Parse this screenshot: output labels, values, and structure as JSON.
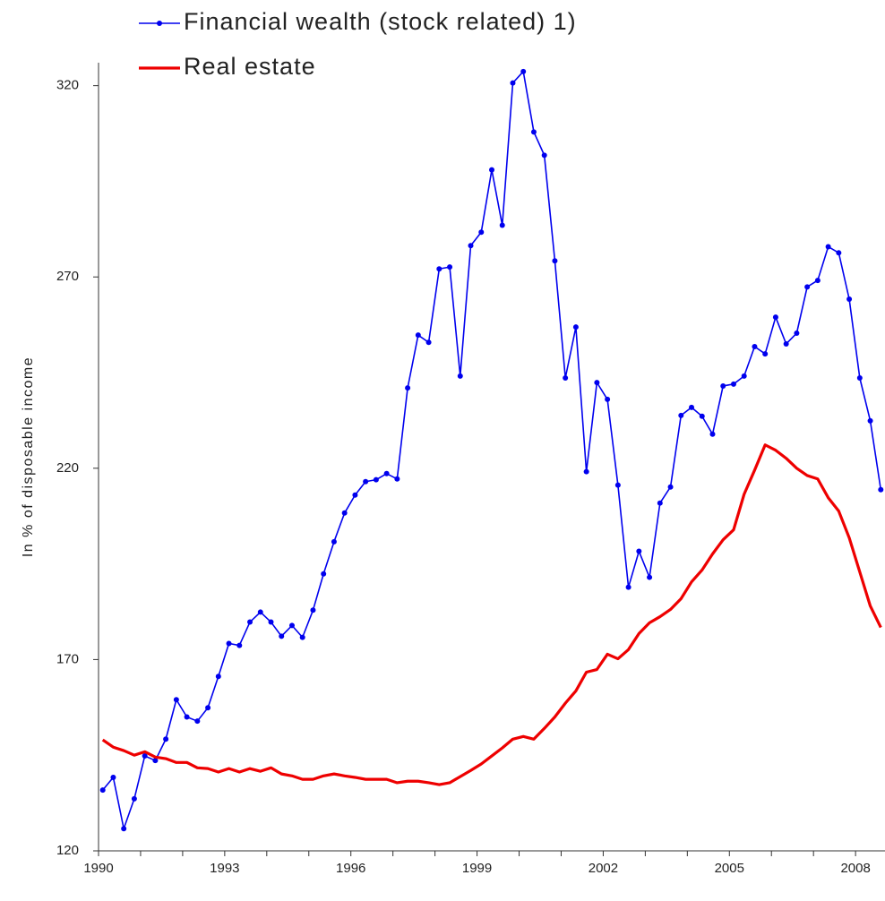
{
  "chart_data": {
    "type": "line",
    "ylabel": "In % of disposable income",
    "x": [
      1990.1,
      1990.35,
      1990.6,
      1990.85,
      1991.1,
      1991.35,
      1991.6,
      1991.85,
      1992.1,
      1992.35,
      1992.6,
      1992.85,
      1993.1,
      1993.35,
      1993.6,
      1993.85,
      1994.1,
      1994.35,
      1994.6,
      1994.85,
      1995.1,
      1995.35,
      1995.6,
      1995.85,
      1996.1,
      1996.35,
      1996.6,
      1996.85,
      1997.1,
      1997.35,
      1997.6,
      1997.85,
      1998.1,
      1998.35,
      1998.6,
      1998.85,
      1999.1,
      1999.35,
      1999.6,
      1999.85,
      2000.1,
      2000.35,
      2000.6,
      2000.85,
      2001.1,
      2001.35,
      2001.6,
      2001.85,
      2002.1,
      2002.35,
      2002.6,
      2002.85,
      2003.1,
      2003.35,
      2003.6,
      2003.85,
      2004.1,
      2004.35,
      2004.6,
      2004.85,
      2005.1,
      2005.35,
      2005.6,
      2005.85,
      2006.1,
      2006.35,
      2006.6,
      2006.85,
      2007.1,
      2007.35,
      2007.6,
      2007.85,
      2008.1,
      2008.35,
      2008.6
    ],
    "series": [
      {
        "name": "Financial wealth (stock related) 1)",
        "color": "#0000ee",
        "markers": true,
        "values": [
          135.9,
          139.2,
          125.8,
          133.6,
          144.8,
          143.6,
          149.2,
          159.5,
          155.0,
          153.9,
          157.4,
          165.6,
          174.2,
          173.7,
          179.8,
          182.4,
          179.8,
          176.1,
          178.9,
          175.8,
          182.9,
          192.4,
          200.8,
          208.3,
          213.0,
          216.5,
          217.0,
          218.6,
          217.2,
          241.0,
          254.8,
          252.9,
          272.1,
          272.6,
          244.1,
          278.2,
          281.7,
          298.0,
          283.5,
          320.7,
          323.7,
          307.9,
          301.8,
          274.2,
          243.6,
          256.9,
          219.1,
          242.4,
          238.0,
          215.6,
          188.9,
          198.3,
          191.5,
          210.9,
          215.1,
          233.8,
          235.9,
          233.6,
          228.9,
          241.5,
          242.0,
          244.1,
          251.8,
          249.9,
          259.5,
          252.5,
          255.3,
          267.4,
          269.1,
          277.9,
          276.3,
          264.2,
          243.6,
          232.4,
          214.4
        ]
      },
      {
        "name": "Real estate",
        "color": "#ee0000",
        "markers": false,
        "values": [
          149.0,
          147.1,
          146.2,
          145.0,
          145.9,
          144.5,
          144.1,
          143.1,
          143.1,
          141.7,
          141.5,
          140.6,
          141.5,
          140.6,
          141.5,
          140.8,
          141.7,
          140.1,
          139.6,
          138.7,
          138.7,
          139.6,
          140.1,
          139.6,
          139.2,
          138.7,
          138.7,
          138.7,
          137.8,
          138.2,
          138.2,
          137.8,
          137.3,
          137.8,
          139.4,
          141.0,
          142.7,
          144.8,
          146.9,
          149.2,
          149.9,
          149.2,
          152.0,
          155.0,
          158.6,
          161.8,
          166.7,
          167.4,
          171.4,
          170.2,
          172.6,
          176.8,
          179.6,
          181.2,
          183.1,
          185.9,
          190.3,
          193.4,
          197.6,
          201.3,
          203.9,
          213.2,
          219.5,
          226.1,
          224.7,
          222.6,
          220.0,
          218.1,
          217.2,
          212.3,
          208.8,
          201.8,
          192.9,
          184.0,
          178.4
        ]
      }
    ],
    "xlim": [
      1990,
      2008.7
    ],
    "xticks": [
      1990,
      1993,
      1996,
      1999,
      2002,
      2005,
      2008
    ],
    "xminorticks": [
      1991,
      1992,
      1994,
      1995,
      1997,
      1998,
      2000,
      2001,
      2003,
      2004,
      2006,
      2007
    ],
    "ylim": [
      120,
      326
    ],
    "yticks": [
      120,
      170,
      220,
      270,
      320
    ],
    "legend": "top-left"
  }
}
